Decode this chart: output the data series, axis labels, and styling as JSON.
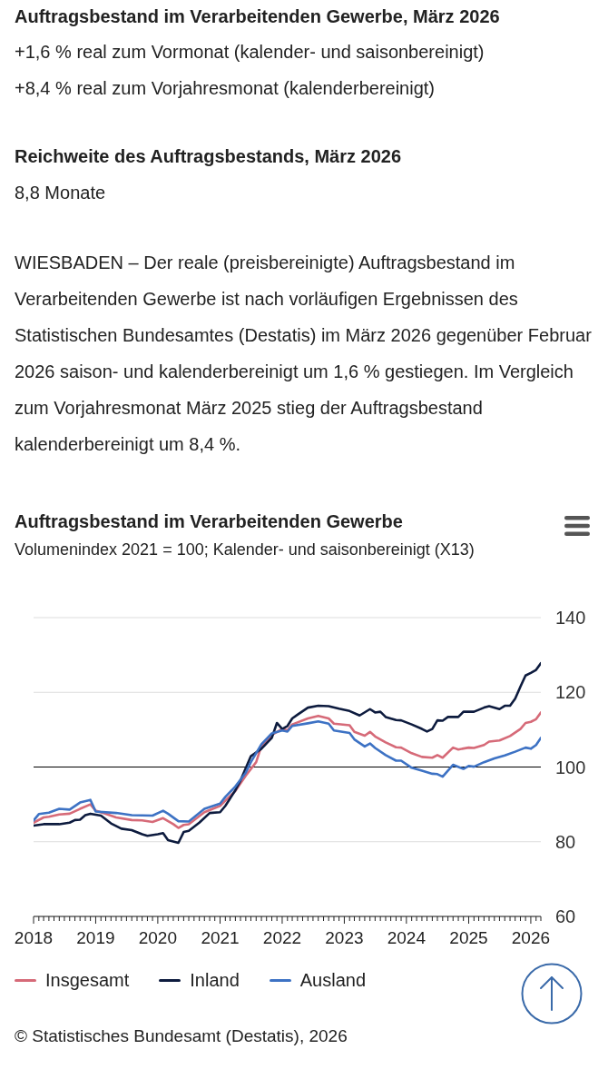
{
  "chart_data": {
    "type": "line",
    "title": "Auftragsbestand im Verarbeitenden Gewerbe",
    "subtitle": "Volumenindex 2021 = 100; Kalender- und saisonbereinigt (X13)",
    "annotations": [
      "Auftragsbestand im Verarbeitenden Gewerbe, März 2026",
      "+1,6 % real zum Vormonat (kalender- und saisonbereinigt)",
      "+8,4 % real zum Vorjahresmonat (kalenderbereinigt)",
      "Reichweite des Auftragsbestands, März 2026",
      "8,8 Monate",
      "WIESBADEN – Der reale (preisbereinigte) Auftragsbestand im Verarbeitenden Gewerbe ist nach vorläufigen Ergebnissen des Statistischen Bundesamtes (Destatis) im März 2026 gegenüber Februar 2026 saison- und kalenderbereinigt um 1,6 % gestiegen. Im Vergleich zum Vorjahresmonat März 2025 stieg der Auftragsbestand kalenderbereinigt um 8,4 %.",
      "© Statistisches Bundesamt (Destatis), 2026"
    ],
    "series": [
      {
        "name": "Insgesamt",
        "color": "#d66a78",
        "x": [
          "2018-01",
          "2018-03",
          "2018-04",
          "2018-06",
          "2018-08",
          "2018-10",
          "2018-12",
          "2019-01",
          "2019-03",
          "2019-05",
          "2019-08",
          "2019-10",
          "2019-12",
          "2020-02",
          "2020-04",
          "2020-05",
          "2020-06",
          "2020-07",
          "2020-10",
          "2021-01",
          "2021-02",
          "2021-04",
          "2021-06",
          "2021-08",
          "2021-09",
          "2021-11",
          "2022-01",
          "2022-02",
          "2022-03",
          "2022-06",
          "2022-08",
          "2022-10",
          "2022-11",
          "2023-02",
          "2023-03",
          "2023-05",
          "2023-06",
          "2023-07",
          "2023-09",
          "2023-11",
          "2023-12",
          "2024-02",
          "2024-04",
          "2024-06",
          "2024-07",
          "2024-08",
          "2024-10",
          "2024-11",
          "2025-01",
          "2025-02",
          "2025-04",
          "2025-05",
          "2025-07",
          "2025-09",
          "2025-11",
          "2025-12",
          "2026-01",
          "2026-02",
          "2026-03"
        ],
        "values": [
          85.1,
          86.5,
          86.7,
          87.3,
          87.5,
          88.8,
          90.0,
          88.3,
          87.5,
          86.5,
          85.8,
          85.7,
          85.3,
          86.3,
          84.7,
          83.7,
          84.5,
          84.7,
          87.9,
          89.6,
          91.0,
          93.6,
          97.7,
          101.3,
          105.7,
          108.6,
          110.2,
          109.8,
          111.4,
          113.0,
          113.7,
          113.0,
          111.6,
          111.2,
          109.4,
          108.4,
          109.4,
          108.2,
          106.6,
          105.3,
          105.2,
          103.7,
          102.7,
          102.5,
          103.2,
          102.5,
          105.2,
          104.7,
          105.2,
          105.1,
          105.9,
          106.8,
          107.1,
          108.3,
          110.2,
          111.8,
          112.1,
          112.8,
          114.6
        ]
      },
      {
        "name": "Inland",
        "color": "#0d1b3e",
        "x": [
          "2018-01",
          "2018-03",
          "2018-06",
          "2018-08",
          "2018-09",
          "2018-10",
          "2018-11",
          "2018-12",
          "2019-02",
          "2019-04",
          "2019-06",
          "2019-08",
          "2019-10",
          "2019-11",
          "2020-01",
          "2020-02",
          "2020-03",
          "2020-05",
          "2020-06",
          "2020-07",
          "2020-09",
          "2020-11",
          "2021-01",
          "2021-02",
          "2021-04",
          "2021-05",
          "2021-07",
          "2021-09",
          "2021-11",
          "2021-12",
          "2022-01",
          "2022-02",
          "2022-03",
          "2022-04",
          "2022-06",
          "2022-08",
          "2022-10",
          "2022-12",
          "2023-02",
          "2023-04",
          "2023-06",
          "2023-07",
          "2023-08",
          "2023-09",
          "2023-11",
          "2023-12",
          "2024-02",
          "2024-04",
          "2024-05",
          "2024-06",
          "2024-07",
          "2024-08",
          "2024-09",
          "2024-11",
          "2024-12",
          "2025-02",
          "2025-04",
          "2025-05",
          "2025-07",
          "2025-08",
          "2025-09",
          "2025-10",
          "2025-11",
          "2025-12",
          "2026-01",
          "2026-02",
          "2026-03"
        ],
        "values": [
          84.3,
          84.7,
          84.7,
          85.1,
          85.8,
          85.9,
          87.1,
          87.5,
          87.0,
          84.9,
          83.5,
          83.1,
          82.0,
          81.6,
          82.0,
          82.3,
          80.4,
          79.7,
          82.6,
          82.9,
          85.1,
          87.7,
          87.9,
          89.6,
          93.8,
          96.4,
          102.9,
          104.9,
          107.8,
          111.8,
          110.2,
          111.0,
          113.0,
          114.0,
          115.9,
          116.4,
          116.3,
          115.6,
          115.0,
          113.8,
          115.5,
          114.6,
          114.8,
          113.4,
          112.6,
          112.5,
          111.4,
          110.2,
          109.5,
          110.2,
          112.5,
          112.4,
          113.4,
          113.4,
          114.8,
          114.8,
          115.9,
          116.3,
          115.5,
          116.4,
          116.4,
          118.3,
          121.5,
          124.5,
          125.2,
          126.0,
          127.8
        ]
      },
      {
        "name": "Ausland",
        "color": "#3d72c4",
        "x": [
          "2018-01",
          "2018-02",
          "2018-04",
          "2018-06",
          "2018-08",
          "2018-10",
          "2018-12",
          "2019-01",
          "2019-05",
          "2019-08",
          "2019-12",
          "2020-02",
          "2020-03",
          "2020-05",
          "2020-07",
          "2020-10",
          "2021-01",
          "2021-02",
          "2021-04",
          "2021-06",
          "2021-07",
          "2021-09",
          "2021-11",
          "2022-01",
          "2022-02",
          "2022-03",
          "2022-06",
          "2022-08",
          "2022-10",
          "2022-11",
          "2023-02",
          "2023-03",
          "2023-05",
          "2023-06",
          "2023-07",
          "2023-09",
          "2023-11",
          "2023-12",
          "2024-02",
          "2024-04",
          "2024-06",
          "2024-07",
          "2024-08",
          "2024-10",
          "2024-12",
          "2025-01",
          "2025-02",
          "2025-04",
          "2025-06",
          "2025-08",
          "2025-10",
          "2025-12",
          "2026-01",
          "2026-02",
          "2026-03"
        ],
        "values": [
          85.7,
          87.4,
          87.8,
          88.8,
          88.6,
          90.5,
          91.2,
          88.1,
          87.7,
          87.1,
          87.0,
          88.3,
          87.5,
          85.5,
          85.4,
          88.8,
          90.2,
          92.0,
          94.8,
          98.5,
          101.3,
          106.1,
          109.0,
          109.8,
          109.5,
          111.0,
          111.7,
          112.2,
          111.6,
          109.8,
          109.1,
          107.4,
          105.5,
          106.3,
          105.1,
          103.2,
          101.7,
          101.7,
          99.8,
          99.0,
          98.2,
          98.1,
          97.4,
          100.6,
          99.5,
          100.3,
          100.1,
          101.3,
          102.3,
          103.1,
          104.1,
          105.2,
          104.9,
          105.9,
          107.8
        ]
      }
    ],
    "xlim": [
      "2018-01",
      "2026-03"
    ],
    "xticks": [
      "2018",
      {
        "value": "2018-02",
        "label": null
      },
      {
        "value": "2018-03",
        "label": null
      },
      {
        "value": "2018-04",
        "label": null
      },
      {
        "value": "2018-05",
        "label": null
      },
      {
        "value": "2018-06",
        "label": null
      },
      {
        "value": "2018-07",
        "label": null
      },
      {
        "value": "2018-08",
        "label": null
      },
      {
        "value": "2018-09",
        "label": null
      },
      {
        "value": "2018-10",
        "label": null
      },
      {
        "value": "2018-11",
        "label": null
      },
      {
        "value": "2018-12",
        "label": null
      },
      "2019",
      {
        "value": "2019-02",
        "label": null
      },
      {
        "value": "2019-03",
        "label": null
      },
      {
        "value": "2019-04",
        "label": null
      },
      {
        "value": "2019-05",
        "label": null
      },
      {
        "value": "2019-06",
        "label": null
      },
      {
        "value": "2019-07",
        "label": null
      },
      {
        "value": "2019-08",
        "label": null
      },
      {
        "value": "2019-09",
        "label": null
      },
      {
        "value": "2019-10",
        "label": null
      },
      {
        "value": "2019-11",
        "label": null
      },
      {
        "value": "2019-12",
        "label": null
      },
      "2020",
      {
        "value": "2020-02",
        "label": null
      },
      {
        "value": "2020-03",
        "label": null
      },
      {
        "value": "2020-04",
        "label": null
      },
      {
        "value": "2020-05",
        "label": null
      },
      {
        "value": "2020-06",
        "label": null
      },
      {
        "value": "2020-07",
        "label": null
      },
      {
        "value": "2020-08",
        "label": null
      },
      {
        "value": "2020-09",
        "label": null
      },
      {
        "value": "2020-10",
        "label": null
      },
      {
        "value": "2020-11",
        "label": null
      },
      {
        "value": "2020-12",
        "label": null
      },
      "2021",
      {
        "value": "2021-02",
        "label": null
      },
      {
        "value": "2021-03",
        "label": null
      },
      {
        "value": "2021-04",
        "label": null
      },
      {
        "value": "2021-05",
        "label": null
      },
      {
        "value": "2021-06",
        "label": null
      },
      {
        "value": "2021-07",
        "label": null
      },
      {
        "value": "2021-08",
        "label": null
      },
      {
        "value": "2021-09",
        "label": null
      },
      {
        "value": "2021-10",
        "label": null
      },
      {
        "value": "2021-11",
        "label": null
      },
      {
        "value": "2021-12",
        "label": null
      },
      "2022",
      {
        "value": "2022-02",
        "label": null
      },
      {
        "value": "2022-03",
        "label": null
      },
      {
        "value": "2022-04",
        "label": null
      },
      {
        "value": "2022-05",
        "label": null
      },
      {
        "value": "2022-06",
        "label": null
      },
      {
        "value": "2022-07",
        "label": null
      },
      {
        "value": "2022-08",
        "label": null
      },
      {
        "value": "2022-09",
        "label": null
      },
      {
        "value": "2022-10",
        "label": null
      },
      {
        "value": "2022-11",
        "label": null
      },
      {
        "value": "2022-12",
        "label": null
      },
      "2023",
      {
        "value": "2023-02",
        "label": null
      },
      {
        "value": "2023-03",
        "label": null
      },
      {
        "value": "2023-04",
        "label": null
      },
      {
        "value": "2023-05",
        "label": null
      },
      {
        "value": "2023-06",
        "label": null
      },
      {
        "value": "2023-07",
        "label": null
      },
      {
        "value": "2023-08",
        "label": null
      },
      {
        "value": "2023-09",
        "label": null
      },
      {
        "value": "2023-10",
        "label": null
      },
      {
        "value": "2023-11",
        "label": null
      },
      {
        "value": "2023-12",
        "label": null
      },
      "2024",
      {
        "value": "2024-02",
        "label": null
      },
      {
        "value": "2024-03",
        "label": null
      },
      {
        "value": "2024-04",
        "label": null
      },
      {
        "value": "2024-05",
        "label": null
      },
      {
        "value": "2024-06",
        "label": null
      },
      {
        "value": "2024-07",
        "label": null
      },
      {
        "value": "2024-08",
        "label": null
      },
      {
        "value": "2024-09",
        "label": null
      },
      {
        "value": "2024-10",
        "label": null
      },
      {
        "value": "2024-11",
        "label": null
      },
      {
        "value": "2024-12",
        "label": null
      },
      "2025",
      {
        "value": "2025-02",
        "label": null
      },
      {
        "value": "2025-03",
        "label": null
      },
      {
        "value": "2025-04",
        "label": null
      },
      {
        "value": "2025-05",
        "label": null
      },
      {
        "value": "2025-06",
        "label": null
      },
      {
        "value": "2025-07",
        "label": null
      },
      {
        "value": "2025-08",
        "label": null
      },
      {
        "value": "2025-09",
        "label": null
      },
      {
        "value": "2025-10",
        "label": null
      },
      {
        "value": "2025-11",
        "label": null
      },
      {
        "value": "2025-12",
        "label": null
      },
      "2026",
      {
        "value": "2026-02",
        "label": null
      },
      {
        "value": "2026-03",
        "label": null
      }
    ],
    "ylim": [
      60,
      140
    ],
    "yticks": [
      60,
      80,
      100,
      120,
      140
    ],
    "ref_lines": [
      {
        "axis": "y",
        "value": 100,
        "color": "#000000"
      }
    ],
    "grid": "y",
    "legend": "bottom left"
  }
}
